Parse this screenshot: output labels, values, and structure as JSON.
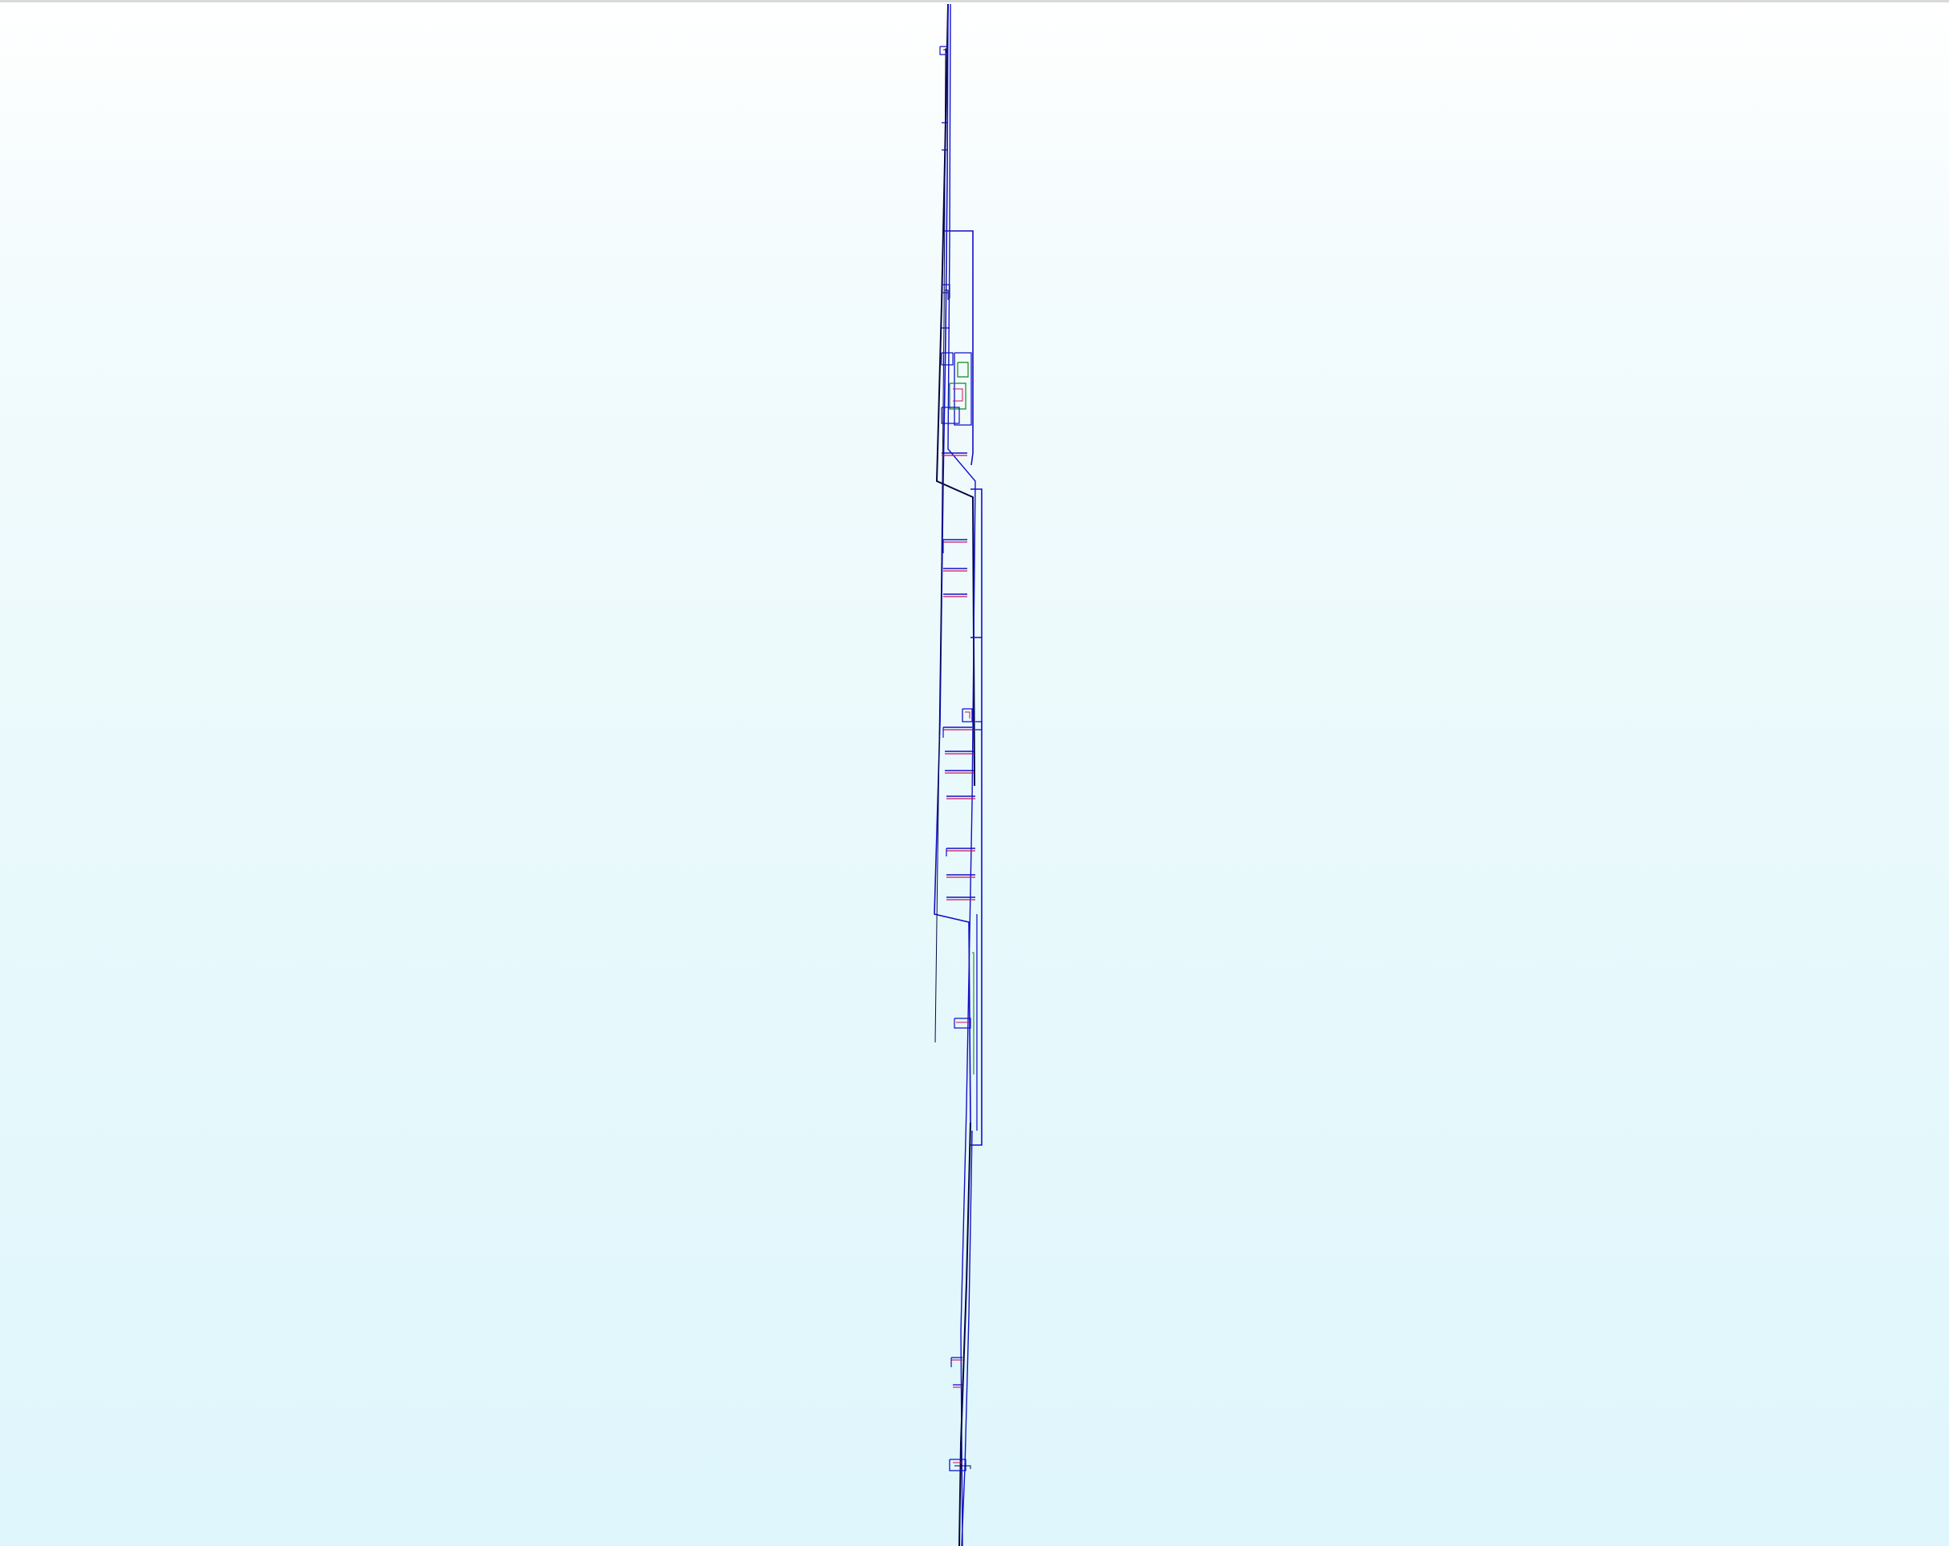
{
  "viewer": {
    "background_gradient": [
      "#ffffff",
      "#def6fc"
    ],
    "top_border_color": "#d9d9d9"
  },
  "model": {
    "name": "wireframe-model",
    "edge_colors": {
      "primary": "#1010c8",
      "dark": "#050540",
      "accent": "#c81060",
      "highlight": "#108a10"
    }
  }
}
